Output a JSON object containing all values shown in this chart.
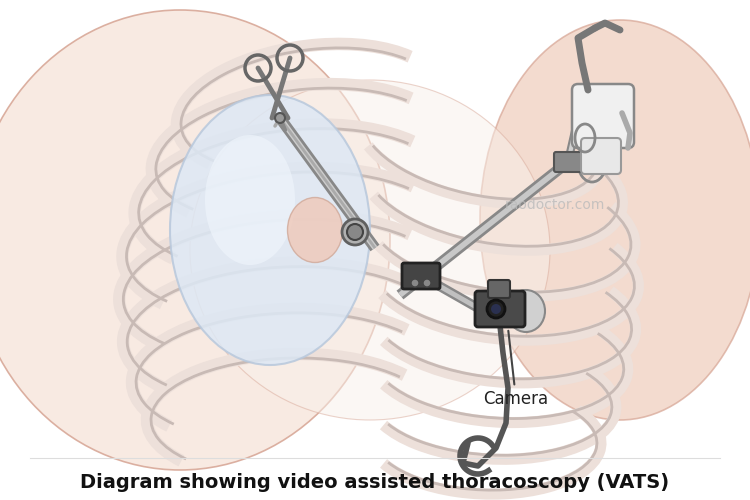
{
  "title": "Diagram showing video assisted thoracoscopy (VATS)",
  "watermark": "raodoctor.com",
  "camera_label": "Camera",
  "bg_color": "#ffffff",
  "title_fontsize": 14,
  "title_fontweight": "bold",
  "watermark_color": "#bbbbbb",
  "watermark_fontsize": 10,
  "skin_light": "#f8e8df",
  "skin_mid": "#f0d0c0",
  "skin_edge": "#d8a898",
  "rib_fill": "#f0e0d8",
  "rib_edge": "#c8b0a8",
  "lung_fill": "#dde8f5",
  "lung_edge": "#b8c8dc",
  "tool_silver": "#aaaaaa",
  "tool_dark": "#555555",
  "tool_light": "#dddddd",
  "tool_vdark": "#333333"
}
